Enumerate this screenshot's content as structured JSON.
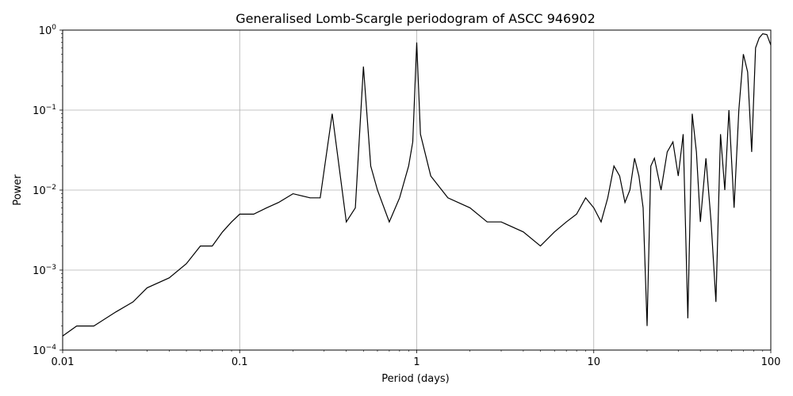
{
  "chart_data": {
    "type": "line",
    "title": "Generalised Lomb-Scargle periodogram of ASCC 946902",
    "xlabel": "Period (days)",
    "ylabel": "Power",
    "x_scale": "log",
    "y_scale": "log",
    "xlim": [
      0.01,
      100
    ],
    "ylim": [
      0.0001,
      1
    ],
    "grid": true,
    "line_color": "#000000",
    "x_ticks": [
      {
        "value": 0.01,
        "label": "0.01"
      },
      {
        "value": 0.1,
        "label": "0.1"
      },
      {
        "value": 1,
        "label": "1"
      },
      {
        "value": 10,
        "label": "10"
      },
      {
        "value": 100,
        "label": "100"
      }
    ],
    "y_ticks": [
      {
        "value": 0.0001,
        "base": "10",
        "exp": "−4"
      },
      {
        "value": 0.001,
        "base": "10",
        "exp": "−3"
      },
      {
        "value": 0.01,
        "base": "10",
        "exp": "−2"
      },
      {
        "value": 0.1,
        "base": "10",
        "exp": "−1"
      },
      {
        "value": 1,
        "base": "10",
        "exp": "0"
      }
    ],
    "series": [
      {
        "x": [
          0.01,
          0.012,
          0.015,
          0.02,
          0.025,
          0.03,
          0.04,
          0.05,
          0.06,
          0.07,
          0.08,
          0.09,
          0.1,
          0.12,
          0.142,
          0.166,
          0.2,
          0.25,
          0.285,
          0.333,
          0.4,
          0.45,
          0.5,
          0.55,
          0.6,
          0.7,
          0.8,
          0.9,
          0.95,
          1.0,
          1.05,
          1.2,
          1.5,
          2.0,
          2.5,
          3.0,
          4.0,
          5.0,
          6.0,
          7.0,
          8.0,
          9.0,
          10.0,
          11.0,
          12.0,
          13.0,
          14.0,
          15.0,
          16.0,
          17.0,
          18.0,
          19.0,
          20.0,
          21.0,
          22.0,
          24.0,
          26.0,
          28.0,
          30.0,
          32.0,
          34.0,
          36.0,
          38.0,
          40.0,
          43.0,
          46.0,
          49.0,
          52.0,
          55.0,
          58.0,
          62.0,
          66.0,
          70.0,
          74.0,
          78.0,
          82.0,
          86.0,
          90.0,
          95.0,
          100.0
        ],
        "y": [
          0.00015,
          0.0002,
          0.0002,
          0.0003,
          0.0004,
          0.0006,
          0.0008,
          0.0012,
          0.002,
          0.002,
          0.003,
          0.004,
          0.005,
          0.005,
          0.006,
          0.007,
          0.009,
          0.008,
          0.008,
          0.09,
          0.004,
          0.006,
          0.35,
          0.02,
          0.01,
          0.004,
          0.008,
          0.02,
          0.04,
          0.7,
          0.05,
          0.015,
          0.008,
          0.006,
          0.004,
          0.004,
          0.003,
          0.002,
          0.003,
          0.004,
          0.005,
          0.008,
          0.006,
          0.004,
          0.008,
          0.02,
          0.015,
          0.007,
          0.01,
          0.025,
          0.015,
          0.006,
          0.0002,
          0.02,
          0.025,
          0.01,
          0.03,
          0.04,
          0.015,
          0.05,
          0.00025,
          0.09,
          0.03,
          0.004,
          0.025,
          0.004,
          0.0004,
          0.05,
          0.01,
          0.1,
          0.006,
          0.1,
          0.5,
          0.3,
          0.03,
          0.6,
          0.8,
          0.9,
          0.88,
          0.65
        ]
      }
    ]
  }
}
